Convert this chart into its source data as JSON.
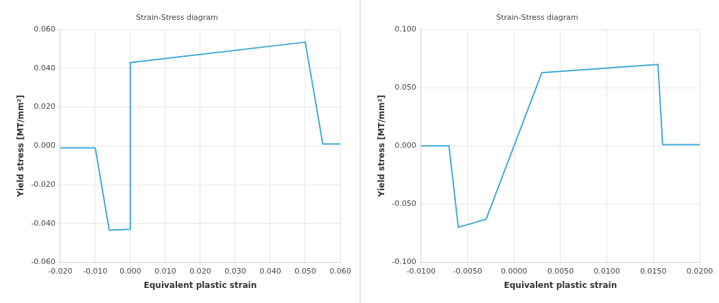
{
  "chart_data": [
    {
      "type": "line",
      "title": "Strain-Stress diagram",
      "xlabel": "Equivalent plastic strain",
      "ylabel": "Yield stress [MT/mm²]",
      "x": [
        -0.02,
        -0.01,
        -0.006,
        0.0,
        0.0,
        0.05,
        0.055,
        0.06
      ],
      "series": [
        {
          "color": "#3fa9d6",
          "values": [
            -0.001,
            -0.001,
            -0.0435,
            -0.043,
            0.043,
            0.0535,
            0.001,
            0.001
          ]
        }
      ],
      "xlim": [
        -0.02,
        0.06
      ],
      "xticks": [
        {
          "value": -0.02,
          "label": "-0.020"
        },
        {
          "value": -0.01,
          "label": "-0.010"
        },
        {
          "value": 0,
          "label": "0.000"
        },
        {
          "value": 0.01,
          "label": "0.010"
        },
        {
          "value": 0.02,
          "label": "0.020"
        },
        {
          "value": 0.03,
          "label": "0.030"
        },
        {
          "value": 0.04,
          "label": "0.040"
        },
        {
          "value": 0.05,
          "label": "0.050"
        },
        {
          "value": 0.06,
          "label": "0.060"
        }
      ],
      "ylim": [
        -0.06,
        0.06
      ],
      "yticks": [
        {
          "value": -0.06,
          "label": "-0.060"
        },
        {
          "value": -0.04,
          "label": "-0.040"
        },
        {
          "value": -0.02,
          "label": "-0.020"
        },
        {
          "value": 0,
          "label": "0.000"
        },
        {
          "value": 0.02,
          "label": "0.020"
        },
        {
          "value": 0.04,
          "label": "0.040"
        },
        {
          "value": 0.06,
          "label": "0.060"
        }
      ],
      "grid": true,
      "marker": "none",
      "line_style": "solid"
    },
    {
      "type": "line",
      "title": "Strain-Stress diagram",
      "xlabel": "Equivalent plastic strain",
      "ylabel": "Yield stress [MT/mm²]",
      "x": [
        -0.01,
        -0.007,
        -0.006,
        -0.003,
        0.003,
        0.0155,
        0.016,
        0.02
      ],
      "series": [
        {
          "color": "#3fa9d6",
          "values": [
            0,
            0,
            -0.07,
            -0.063,
            0.063,
            0.07,
            0.001,
            0.001
          ]
        }
      ],
      "xlim": [
        -0.01,
        0.02
      ],
      "xticks": [
        {
          "value": -0.01,
          "label": "-0.0100"
        },
        {
          "value": -0.005,
          "label": "-0.0050"
        },
        {
          "value": 0,
          "label": "0.0000"
        },
        {
          "value": 0.005,
          "label": "0.0050"
        },
        {
          "value": 0.01,
          "label": "0.0100"
        },
        {
          "value": 0.015,
          "label": "0.0150"
        },
        {
          "value": 0.02,
          "label": "0.0200"
        }
      ],
      "ylim": [
        -0.1,
        0.1
      ],
      "yticks": [
        {
          "value": -0.1,
          "label": "-0.100"
        },
        {
          "value": -0.05,
          "label": "-0.050"
        },
        {
          "value": 0,
          "label": "0.000"
        },
        {
          "value": 0.05,
          "label": "0.050"
        },
        {
          "value": 0.1,
          "label": "0.100"
        }
      ],
      "grid": true,
      "marker": "none",
      "line_style": "solid"
    }
  ]
}
